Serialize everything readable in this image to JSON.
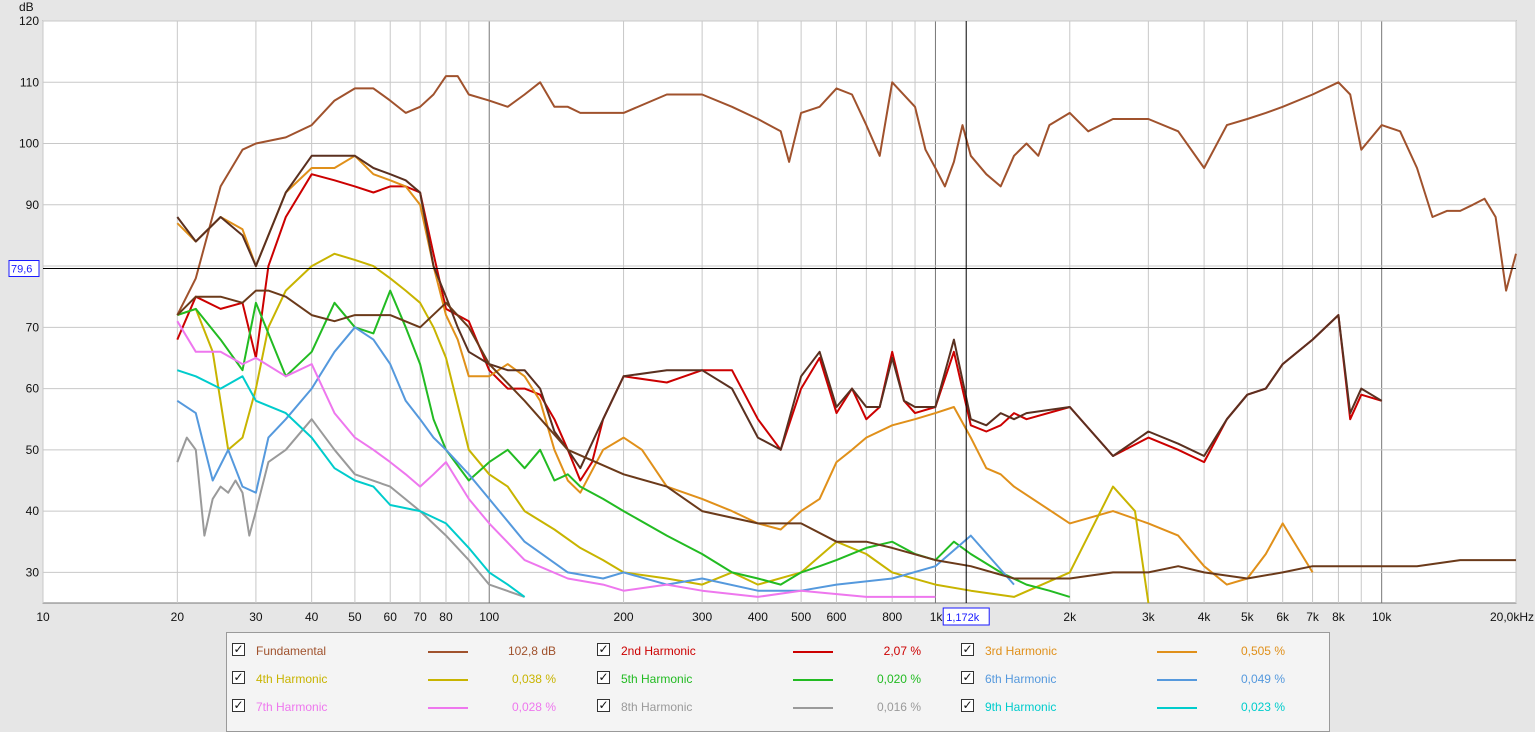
{
  "chart_data": {
    "type": "line",
    "ylabel": "dB",
    "xscale": "log",
    "xlim": [
      10,
      20000
    ],
    "ylim": [
      25,
      120
    ],
    "y_ticks": [
      "120",
      "110",
      "100",
      "90",
      "70",
      "60",
      "50",
      "40",
      "30"
    ],
    "x_ticks": [
      {
        "v": 10,
        "t": "10"
      },
      {
        "v": 20,
        "t": "20"
      },
      {
        "v": 30,
        "t": "30"
      },
      {
        "v": 40,
        "t": "40"
      },
      {
        "v": 50,
        "t": "50"
      },
      {
        "v": 60,
        "t": "60"
      },
      {
        "v": 70,
        "t": "70"
      },
      {
        "v": 80,
        "t": "80"
      },
      {
        "v": 100,
        "t": "100"
      },
      {
        "v": 200,
        "t": "200"
      },
      {
        "v": 300,
        "t": "300"
      },
      {
        "v": 400,
        "t": "400"
      },
      {
        "v": 500,
        "t": "500"
      },
      {
        "v": 600,
        "t": "600"
      },
      {
        "v": 800,
        "t": "800"
      },
      {
        "v": 1000,
        "t": "1k"
      },
      {
        "v": 2000,
        "t": "2k"
      },
      {
        "v": 3000,
        "t": "3k"
      },
      {
        "v": 4000,
        "t": "4k"
      },
      {
        "v": 5000,
        "t": "5k"
      },
      {
        "v": 6000,
        "t": "6k"
      },
      {
        "v": 7000,
        "t": "7k"
      },
      {
        "v": 8000,
        "t": "8k"
      },
      {
        "v": 10000,
        "t": "10k"
      },
      {
        "v": 20000,
        "t": "20,0kHz"
      }
    ],
    "grid": true,
    "cursor": {
      "x": 1172,
      "x_label": "1,172k",
      "y": 79.6,
      "y_label": "79,6"
    },
    "series": [
      {
        "name": "Fundamental",
        "color": "#a0522d",
        "x": [
          20,
          22,
          25,
          28,
          30,
          35,
          40,
          45,
          50,
          55,
          60,
          65,
          70,
          75,
          80,
          85,
          90,
          100,
          110,
          120,
          130,
          140,
          150,
          160,
          180,
          200,
          250,
          300,
          350,
          400,
          450,
          470,
          500,
          550,
          600,
          650,
          700,
          750,
          800,
          900,
          950,
          1000,
          1050,
          1100,
          1150,
          1200,
          1300,
          1400,
          1500,
          1600,
          1700,
          1800,
          2000,
          2200,
          2500,
          3000,
          3500,
          4000,
          4500,
          5000,
          5500,
          6000,
          7000,
          8000,
          8500,
          9000,
          10000,
          11000,
          12000,
          13000,
          14000,
          15000,
          16000,
          17000,
          18000,
          19000,
          20000
        ],
        "y": [
          72,
          78,
          93,
          99,
          100,
          101,
          103,
          107,
          109,
          109,
          107,
          105,
          106,
          108,
          111,
          111,
          108,
          107,
          106,
          108,
          110,
          106,
          106,
          105,
          105,
          105,
          108,
          108,
          106,
          104,
          102,
          97,
          105,
          106,
          109,
          108,
          103,
          98,
          110,
          106,
          99,
          96,
          93,
          97,
          103,
          98,
          95,
          93,
          98,
          100,
          98,
          103,
          105,
          102,
          104,
          104,
          102,
          96,
          103,
          104,
          105,
          106,
          108,
          110,
          108,
          99,
          103,
          102,
          96,
          88,
          89,
          89,
          90,
          91,
          88,
          76,
          82
        ]
      },
      {
        "name": "2nd Harmonic",
        "color": "#cc0000",
        "x": [
          20,
          22,
          25,
          28,
          30,
          32,
          35,
          40,
          45,
          50,
          55,
          60,
          65,
          70,
          75,
          80,
          90,
          100,
          110,
          120,
          130,
          140,
          150,
          160,
          170,
          180,
          200,
          250,
          300,
          350,
          400,
          450,
          500,
          550,
          600,
          650,
          700,
          750,
          800,
          850,
          900,
          1000,
          1100,
          1200,
          1300,
          1400,
          1500,
          1600,
          2000,
          2500,
          3000,
          3500,
          4000,
          4500,
          5000,
          5500,
          6000,
          7000,
          8000,
          8500,
          9000,
          10000
        ],
        "y": [
          68,
          75,
          73,
          74,
          65,
          80,
          88,
          95,
          94,
          93,
          92,
          93,
          93,
          92,
          82,
          73,
          71,
          63,
          60,
          60,
          59,
          55,
          50,
          45,
          48,
          55,
          62,
          61,
          63,
          63,
          55,
          50,
          60,
          65,
          56,
          60,
          55,
          57,
          66,
          58,
          56,
          57,
          66,
          54,
          53,
          54,
          56,
          55,
          57,
          49,
          52,
          50,
          48,
          55,
          59,
          60,
          64,
          68,
          72,
          55,
          59,
          58
        ]
      },
      {
        "name": "3rd Harmonic",
        "color": "#e0901a",
        "x": [
          20,
          22,
          25,
          28,
          30,
          35,
          40,
          45,
          50,
          55,
          60,
          65,
          70,
          75,
          80,
          85,
          90,
          100,
          110,
          120,
          130,
          140,
          150,
          160,
          180,
          200,
          220,
          250,
          300,
          350,
          400,
          450,
          500,
          550,
          600,
          650,
          700,
          800,
          900,
          1000,
          1100,
          1200,
          1300,
          1400,
          1500,
          2000,
          2500,
          3000,
          3500,
          4000,
          4500,
          5000,
          5500,
          6000,
          7000
        ],
        "y": [
          87,
          84,
          88,
          86,
          80,
          92,
          96,
          96,
          98,
          95,
          94,
          93,
          90,
          80,
          72,
          68,
          62,
          62,
          64,
          62,
          58,
          50,
          45,
          43,
          50,
          52,
          50,
          44,
          42,
          40,
          38,
          37,
          40,
          42,
          48,
          50,
          52,
          54,
          55,
          56,
          57,
          52,
          47,
          46,
          44,
          38,
          40,
          38,
          36,
          31,
          28,
          29,
          33,
          38,
          30
        ]
      },
      {
        "name": "4th Harmonic",
        "color": "#c8b400",
        "x": [
          20,
          22,
          24,
          26,
          28,
          30,
          32,
          35,
          40,
          45,
          50,
          55,
          60,
          65,
          70,
          75,
          80,
          90,
          100,
          110,
          120,
          140,
          160,
          180,
          200,
          250,
          300,
          350,
          400,
          500,
          600,
          700,
          800,
          1000,
          1200,
          1500,
          2000,
          2500,
          2800,
          3000
        ],
        "y": [
          72,
          73,
          66,
          50,
          52,
          60,
          70,
          76,
          80,
          82,
          81,
          80,
          78,
          76,
          74,
          70,
          65,
          50,
          46,
          44,
          40,
          37,
          34,
          32,
          30,
          29,
          28,
          30,
          28,
          30,
          35,
          33,
          30,
          28,
          27,
          26,
          30,
          44,
          40,
          25
        ]
      },
      {
        "name": "5th Harmonic",
        "color": "#22bb22",
        "x": [
          20,
          22,
          25,
          28,
          30,
          35,
          40,
          45,
          50,
          55,
          60,
          65,
          70,
          75,
          80,
          90,
          100,
          110,
          120,
          130,
          140,
          150,
          160,
          180,
          200,
          250,
          300,
          350,
          400,
          450,
          500,
          550,
          600,
          700,
          800,
          900,
          1000,
          1100,
          1200,
          1400,
          1600,
          1800,
          2000
        ],
        "y": [
          72,
          73,
          68,
          63,
          74,
          62,
          66,
          74,
          70,
          69,
          76,
          70,
          64,
          55,
          50,
          45,
          48,
          50,
          47,
          50,
          45,
          46,
          44,
          42,
          40,
          36,
          33,
          30,
          29,
          28,
          30,
          31,
          32,
          34,
          35,
          33,
          32,
          35,
          33,
          30,
          28,
          27,
          26
        ]
      },
      {
        "name": "6th Harmonic",
        "color": "#5599dd",
        "x": [
          20,
          22,
          24,
          26,
          28,
          30,
          32,
          35,
          40,
          45,
          50,
          55,
          60,
          65,
          70,
          75,
          80,
          90,
          100,
          120,
          150,
          180,
          200,
          250,
          300,
          400,
          500,
          600,
          800,
          1000,
          1200,
          1500
        ],
        "y": [
          58,
          56,
          45,
          50,
          44,
          43,
          52,
          55,
          60,
          66,
          70,
          68,
          64,
          58,
          55,
          52,
          50,
          46,
          42,
          35,
          30,
          29,
          30,
          28,
          29,
          27,
          27,
          28,
          29,
          31,
          36,
          28
        ]
      },
      {
        "name": "7th Harmonic",
        "color": "#ee77ee",
        "x": [
          20,
          22,
          25,
          28,
          30,
          35,
          40,
          45,
          50,
          55,
          60,
          65,
          70,
          75,
          80,
          90,
          100,
          120,
          150,
          180,
          200,
          250,
          300,
          400,
          500,
          700,
          1000
        ],
        "y": [
          71,
          66,
          66,
          64,
          65,
          62,
          64,
          56,
          52,
          50,
          48,
          46,
          44,
          46,
          48,
          42,
          38,
          32,
          29,
          28,
          27,
          28,
          27,
          26,
          27,
          26,
          26
        ]
      },
      {
        "name": "8th Harmonic",
        "color": "#9a9a9a",
        "x": [
          20,
          21,
          22,
          23,
          24,
          25,
          26,
          27,
          28,
          29,
          30,
          32,
          35,
          40,
          45,
          50,
          60,
          70,
          80,
          90,
          100,
          120
        ],
        "y": [
          48,
          52,
          50,
          36,
          42,
          44,
          43,
          45,
          43,
          36,
          40,
          48,
          50,
          55,
          50,
          46,
          44,
          40,
          36,
          32,
          28,
          26
        ]
      },
      {
        "name": "9th Harmonic",
        "color": "#00cccc",
        "x": [
          20,
          22,
          25,
          28,
          30,
          35,
          40,
          45,
          50,
          55,
          60,
          70,
          80,
          90,
          100,
          110,
          120
        ],
        "y": [
          63,
          62,
          60,
          62,
          58,
          56,
          52,
          47,
          45,
          44,
          41,
          40,
          38,
          34,
          30,
          28,
          26
        ]
      },
      {
        "name": "",
        "color": "#5a3020",
        "x": [
          20,
          22,
          25,
          28,
          30,
          35,
          40,
          45,
          50,
          55,
          60,
          65,
          70,
          75,
          80,
          85,
          90,
          100,
          110,
          120,
          130,
          140,
          150,
          160,
          180,
          200,
          250,
          300,
          350,
          400,
          450,
          500,
          550,
          600,
          650,
          700,
          750,
          800,
          850,
          900,
          1000,
          1100,
          1200,
          1300,
          1400,
          1500,
          1600,
          2000,
          2500,
          3000,
          3500,
          4000,
          4500,
          5000,
          5500,
          6000,
          7000,
          8000,
          8500,
          9000,
          10000
        ],
        "y": [
          88,
          84,
          88,
          85,
          80,
          92,
          98,
          98,
          98,
          96,
          95,
          94,
          92,
          80,
          75,
          70,
          66,
          64,
          63,
          63,
          60,
          53,
          50,
          47,
          55,
          62,
          63,
          63,
          60,
          52,
          50,
          62,
          66,
          57,
          60,
          57,
          57,
          65,
          58,
          57,
          57,
          68,
          55,
          54,
          56,
          55,
          56,
          57,
          49,
          53,
          51,
          49,
          55,
          59,
          60,
          64,
          68,
          72,
          56,
          60,
          58
        ]
      },
      {
        "name": "",
        "color": "#6b3a1a",
        "x": [
          20,
          22,
          25,
          28,
          30,
          32,
          35,
          40,
          45,
          50,
          55,
          60,
          70,
          80,
          90,
          100,
          120,
          150,
          200,
          250,
          300,
          400,
          500,
          600,
          700,
          800,
          1000,
          1200,
          1500,
          2000,
          2500,
          3000,
          3500,
          4000,
          5000,
          6000,
          7000,
          8000,
          10000,
          12000,
          15000,
          20000
        ],
        "y": [
          72,
          75,
          75,
          74,
          76,
          76,
          75,
          72,
          71,
          72,
          72,
          72,
          70,
          74,
          70,
          64,
          58,
          50,
          46,
          44,
          40,
          38,
          38,
          35,
          35,
          34,
          32,
          31,
          29,
          29,
          30,
          30,
          31,
          30,
          29,
          30,
          31,
          31,
          31,
          31,
          32,
          32
        ]
      }
    ]
  },
  "legend": [
    {
      "name": "Fundamental",
      "value": "102,8 dB",
      "color": "#a0522d",
      "checked": "✓"
    },
    {
      "name": "2nd Harmonic",
      "value": "2,07 %",
      "color": "#cc0000",
      "checked": "✓"
    },
    {
      "name": "3rd Harmonic",
      "value": "0,505 %",
      "color": "#e0901a",
      "checked": "✓"
    },
    {
      "name": "4th Harmonic",
      "value": "0,038 %",
      "color": "#c8b400",
      "checked": "✓"
    },
    {
      "name": "5th Harmonic",
      "value": "0,020 %",
      "color": "#22bb22",
      "checked": "✓"
    },
    {
      "name": "6th Harmonic",
      "value": "0,049 %",
      "color": "#5599dd",
      "checked": "✓"
    },
    {
      "name": "7th Harmonic",
      "value": "0,028 %",
      "color": "#ee77ee",
      "checked": "✓"
    },
    {
      "name": "8th Harmonic",
      "value": "0,016 %",
      "color": "#9a9a9a",
      "checked": "✓"
    },
    {
      "name": "9th Harmonic",
      "value": "0,023 %",
      "color": "#00cccc",
      "checked": "✓"
    }
  ]
}
